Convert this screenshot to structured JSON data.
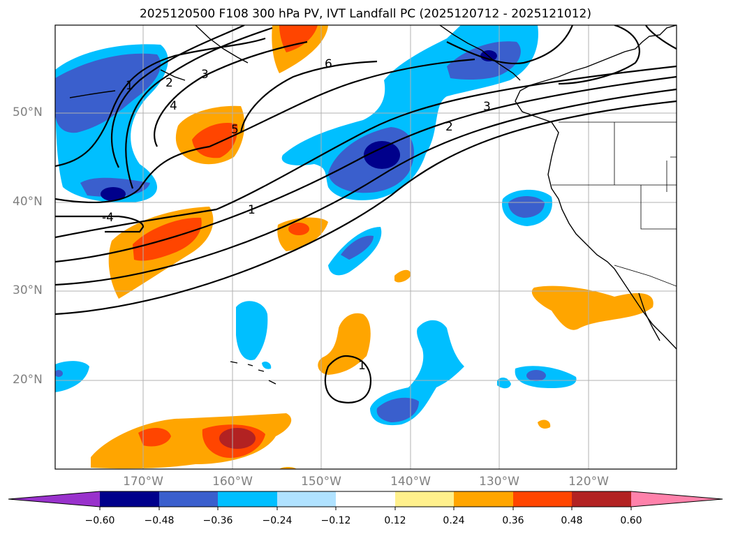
{
  "title": "2025120500 F108 300 hPa PV, IVT Landfall PC (2025120712 - 2025121012)",
  "lat_labels": [
    "50°N",
    "40°N",
    "30°N",
    "20°N"
  ],
  "lon_labels": [
    "170°W",
    "160°W",
    "150°W",
    "140°W",
    "130°W",
    "120°W"
  ],
  "colorbar": {
    "levels": [
      "−0.60",
      "−0.48",
      "−0.36",
      "−0.24",
      "−0.12",
      "0.12",
      "0.24",
      "0.36",
      "0.48",
      "0.60"
    ],
    "colors": [
      "#9932cc",
      "#00008b",
      "#3a5fcd",
      "#00bfff",
      "#b0e2ff",
      "#ffffff",
      "#fff08c",
      "#ffa500",
      "#ff4500",
      "#b22222",
      "#ff82ab"
    ]
  },
  "contour_labels": [
    "1",
    "2",
    "3",
    "4",
    "5",
    "6",
    "1",
    "2",
    "3",
    "-4",
    "1"
  ]
}
